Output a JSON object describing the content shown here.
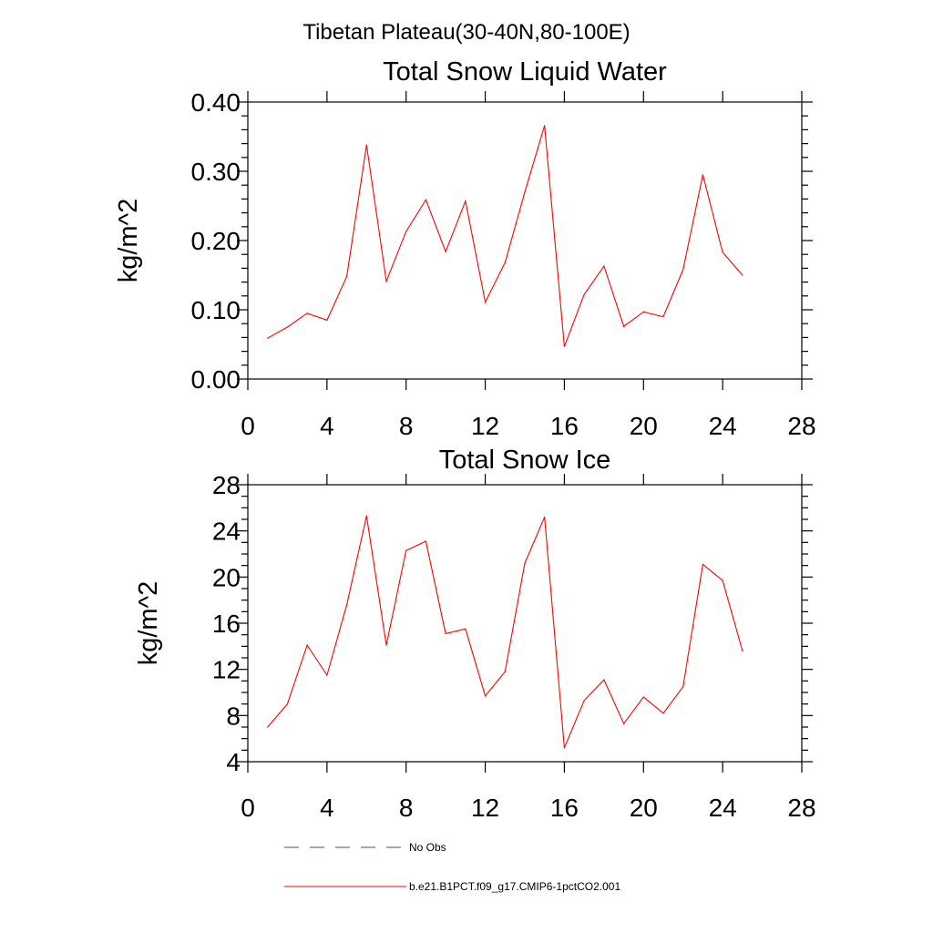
{
  "figure": {
    "suptitle": "Tibetan Plateau(30-40N,80-100E)"
  },
  "legend": {
    "entries": [
      {
        "label": "No Obs",
        "color": "#4a4a8a",
        "style": "dashed"
      },
      {
        "label": "b.e21.B1PCT.f09_g17.CMIP6-1pctCO2.001",
        "color": "#ff0000",
        "style": "solid"
      }
    ]
  },
  "chart_data": [
    {
      "type": "line",
      "title": "Total Snow Liquid Water",
      "xlabel": "",
      "ylabel": "kg/m^2",
      "xlim": [
        0,
        28
      ],
      "ylim": [
        0,
        0.4
      ],
      "xticks": [
        "0",
        "4",
        "8",
        "12",
        "16",
        "20",
        "24",
        "28"
      ],
      "xtick_values": [
        0,
        4,
        8,
        12,
        16,
        20,
        24,
        28
      ],
      "yticks": [
        "0.00",
        "0.10",
        "0.20",
        "0.30",
        "0.40"
      ],
      "ytick_values": [
        0,
        0.1,
        0.2,
        0.3,
        0.4
      ],
      "grid": false,
      "series": [
        {
          "name": "b.e21.B1PCT.f09_g17.CMIP6-1pctCO2.001",
          "color": "#ff0000",
          "x": [
            1,
            2,
            3,
            4,
            5,
            6,
            7,
            8,
            9,
            10,
            11,
            12,
            13,
            14,
            15,
            16,
            17,
            18,
            19,
            20,
            21,
            22,
            23,
            24,
            25
          ],
          "y": [
            0.059,
            0.075,
            0.095,
            0.085,
            0.148,
            0.338,
            0.141,
            0.213,
            0.259,
            0.184,
            0.257,
            0.111,
            0.168,
            0.27,
            0.366,
            0.047,
            0.122,
            0.163,
            0.076,
            0.097,
            0.09,
            0.158,
            0.295,
            0.183,
            0.15
          ]
        }
      ]
    },
    {
      "type": "line",
      "title": "Total Snow Ice",
      "xlabel": "",
      "ylabel": "kg/m^2",
      "xlim": [
        0,
        28
      ],
      "ylim": [
        4,
        28
      ],
      "xticks": [
        "0",
        "4",
        "8",
        "12",
        "16",
        "20",
        "24",
        "28"
      ],
      "xtick_values": [
        0,
        4,
        8,
        12,
        16,
        20,
        24,
        28
      ],
      "yticks": [
        "4",
        "8",
        "12",
        "16",
        "20",
        "24",
        "28"
      ],
      "ytick_values": [
        4,
        8,
        12,
        16,
        20,
        24,
        28
      ],
      "grid": false,
      "series": [
        {
          "name": "b.e21.B1PCT.f09_g17.CMIP6-1pctCO2.001",
          "color": "#ff0000",
          "x": [
            1,
            2,
            3,
            4,
            5,
            6,
            7,
            8,
            9,
            10,
            11,
            12,
            13,
            14,
            15,
            16,
            17,
            18,
            19,
            20,
            21,
            22,
            23,
            24,
            25
          ],
          "y": [
            7.0,
            9.0,
            14.1,
            11.5,
            17.6,
            25.3,
            14.1,
            22.3,
            23.1,
            15.1,
            15.5,
            9.7,
            11.8,
            21.2,
            25.2,
            5.2,
            9.3,
            11.1,
            7.3,
            9.6,
            8.2,
            10.5,
            21.1,
            19.7,
            13.6
          ]
        }
      ]
    }
  ]
}
